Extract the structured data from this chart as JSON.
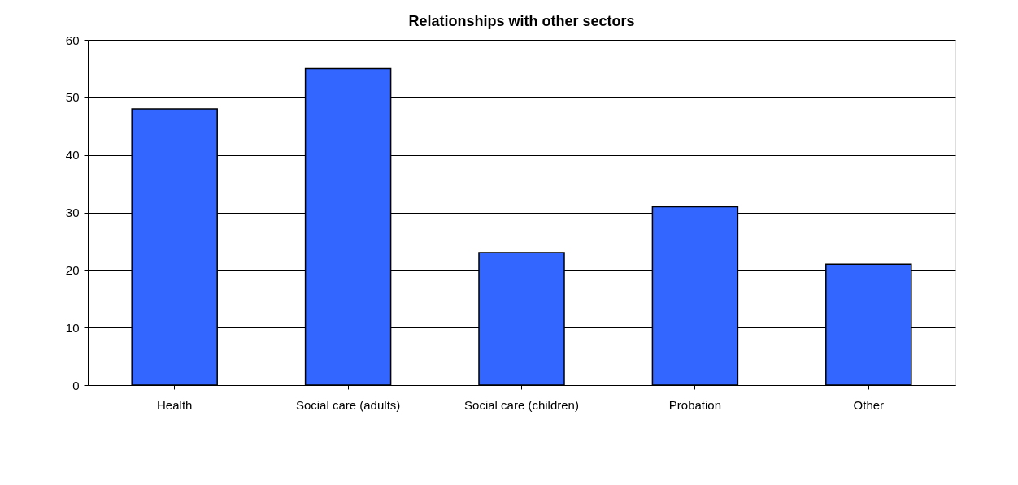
{
  "chart_data": {
    "type": "bar",
    "title": "Relationships with other sectors",
    "categories": [
      "Health",
      "Social care (adults)",
      "Social care (children)",
      "Probation",
      "Other"
    ],
    "values": [
      48,
      55,
      23,
      31,
      21
    ],
    "color": "#3366ff",
    "ylim": [
      0,
      60
    ],
    "yticks": [
      0,
      10,
      20,
      30,
      40,
      50,
      60
    ],
    "grid": "y"
  }
}
